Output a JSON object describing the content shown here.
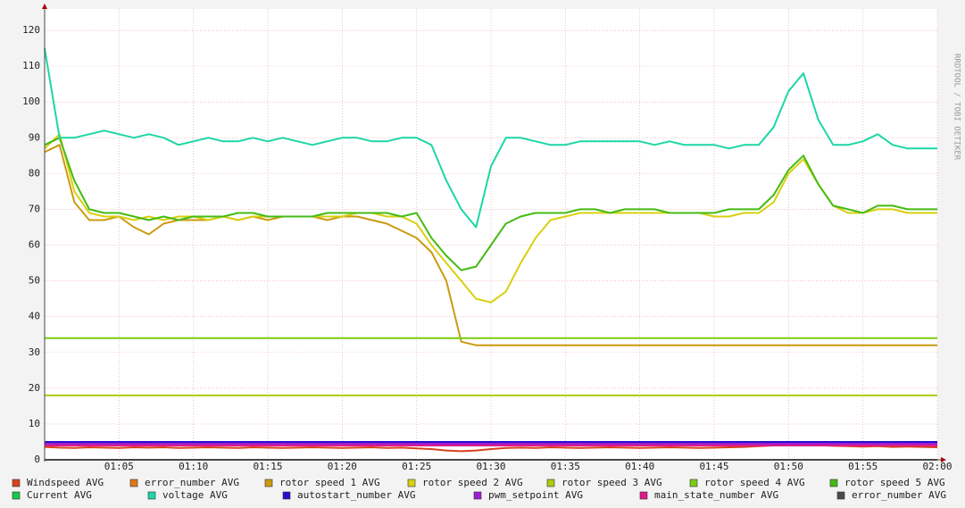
{
  "chart_data": {
    "type": "line",
    "watermark": "RRDTOOL / TOBI OETIKER",
    "x": [
      0,
      1,
      2,
      3,
      4,
      5,
      6,
      7,
      8,
      9,
      10,
      11,
      12,
      13,
      14,
      15,
      16,
      17,
      18,
      19,
      20,
      21,
      22,
      23,
      24,
      25,
      26,
      27,
      28,
      29,
      30,
      31,
      32,
      33,
      34,
      35,
      36,
      37,
      38,
      39,
      40,
      41,
      42,
      43,
      44,
      45,
      46,
      47,
      48,
      49,
      50,
      51,
      52,
      53,
      54,
      55,
      56,
      57,
      58,
      59,
      60
    ],
    "xlim": [
      0,
      60
    ],
    "xticks": [
      {
        "value": 5,
        "label": "01:05"
      },
      {
        "value": 10,
        "label": "01:10"
      },
      {
        "value": 15,
        "label": "01:15"
      },
      {
        "value": 20,
        "label": "01:20"
      },
      {
        "value": 25,
        "label": "01:25"
      },
      {
        "value": 30,
        "label": "01:30"
      },
      {
        "value": 35,
        "label": "01:35"
      },
      {
        "value": 40,
        "label": "01:40"
      },
      {
        "value": 45,
        "label": "01:45"
      },
      {
        "value": 50,
        "label": "01:50"
      },
      {
        "value": 55,
        "label": "01:55"
      },
      {
        "value": 60,
        "label": "02:00"
      }
    ],
    "ylim": [
      0,
      126
    ],
    "yticks": [
      0,
      10,
      20,
      30,
      40,
      50,
      60,
      70,
      80,
      90,
      100,
      110,
      120
    ],
    "grid": true,
    "series": [
      {
        "name": "Windspeed AVG",
        "color": "#d8421e",
        "values": [
          3.6,
          3.4,
          3.3,
          3.5,
          3.4,
          3.3,
          3.5,
          3.4,
          3.5,
          3.3,
          3.4,
          3.5,
          3.4,
          3.3,
          3.5,
          3.4,
          3.3,
          3.4,
          3.5,
          3.4,
          3.3,
          3.4,
          3.5,
          3.3,
          3.4,
          3.2,
          3.0,
          2.6,
          2.4,
          2.6,
          3.0,
          3.3,
          3.4,
          3.3,
          3.5,
          3.4,
          3.3,
          3.4,
          3.5,
          3.4,
          3.3,
          3.4,
          3.5,
          3.4,
          3.3,
          3.4,
          3.5,
          3.6,
          3.8,
          4.0,
          4.2,
          4.3,
          4.1,
          3.9,
          3.8,
          3.7,
          3.8,
          3.6,
          3.7,
          3.6,
          3.5
        ]
      },
      {
        "name": "error_number AVG",
        "color": "#de7a16",
        "values": [
          0,
          0,
          0,
          0,
          0,
          0,
          0,
          0,
          0,
          0,
          0,
          0,
          0,
          0,
          0,
          0,
          0,
          0,
          0,
          0,
          0,
          0,
          0,
          0,
          0,
          0,
          0,
          0,
          0,
          0,
          0,
          0,
          0,
          0,
          0,
          0,
          0,
          0,
          0,
          0,
          0,
          0,
          0,
          0,
          0,
          0,
          0,
          0,
          0,
          0,
          0,
          0,
          0,
          0,
          0,
          0,
          0,
          0,
          0,
          0,
          0
        ]
      },
      {
        "name": "rotor speed 1 AVG",
        "color": "#cc9a10",
        "values": [
          86,
          88,
          72,
          67,
          67,
          68,
          65,
          63,
          66,
          67,
          67,
          67,
          68,
          67,
          68,
          67,
          68,
          68,
          68,
          67,
          68,
          68,
          67,
          66,
          64,
          62,
          58,
          50,
          33,
          32,
          32,
          32,
          32,
          32,
          32,
          32,
          32,
          32,
          32,
          32,
          32,
          32,
          32,
          32,
          32,
          32,
          32,
          32,
          32,
          32,
          32,
          32,
          32,
          32,
          32,
          32,
          32,
          32,
          32,
          32,
          32
        ]
      },
      {
        "name": "rotor speed 2 AVG",
        "color": "#d8d010",
        "values": [
          87,
          91,
          75,
          69,
          68,
          68,
          67,
          68,
          67,
          68,
          68,
          67,
          68,
          67,
          68,
          68,
          68,
          68,
          68,
          68,
          68,
          69,
          69,
          68,
          68,
          66,
          60,
          55,
          50,
          45,
          44,
          47,
          55,
          62,
          67,
          68,
          69,
          69,
          69,
          69,
          69,
          69,
          69,
          69,
          69,
          68,
          68,
          69,
          69,
          72,
          80,
          84,
          77,
          71,
          69,
          69,
          70,
          70,
          69,
          69,
          69
        ]
      },
      {
        "name": "rotor speed 3 AVG",
        "color": "#aacc10",
        "values": [
          18,
          18,
          18,
          18,
          18,
          18,
          18,
          18,
          18,
          18,
          18,
          18,
          18,
          18,
          18,
          18,
          18,
          18,
          18,
          18,
          18,
          18,
          18,
          18,
          18,
          18,
          18,
          18,
          18,
          18,
          18,
          18,
          18,
          18,
          18,
          18,
          18,
          18,
          18,
          18,
          18,
          18,
          18,
          18,
          18,
          18,
          18,
          18,
          18,
          18,
          18,
          18,
          18,
          18,
          18,
          18,
          18,
          18,
          18,
          18,
          18
        ]
      },
      {
        "name": "rotor speed 4 AVG",
        "color": "#7acc10",
        "values": [
          34,
          34,
          34,
          34,
          34,
          34,
          34,
          34,
          34,
          34,
          34,
          34,
          34,
          34,
          34,
          34,
          34,
          34,
          34,
          34,
          34,
          34,
          34,
          34,
          34,
          34,
          34,
          34,
          34,
          34,
          34,
          34,
          34,
          34,
          34,
          34,
          34,
          34,
          34,
          34,
          34,
          34,
          34,
          34,
          34,
          34,
          34,
          34,
          34,
          34,
          34,
          34,
          34,
          34,
          34,
          34,
          34,
          34,
          34,
          34,
          34
        ]
      },
      {
        "name": "rotor speed 5 AVG",
        "color": "#44bb14",
        "values": [
          88,
          90,
          78,
          70,
          69,
          69,
          68,
          67,
          68,
          67,
          68,
          68,
          68,
          69,
          69,
          68,
          68,
          68,
          68,
          69,
          69,
          69,
          69,
          69,
          68,
          69,
          62,
          57,
          53,
          54,
          60,
          66,
          68,
          69,
          69,
          69,
          70,
          70,
          69,
          70,
          70,
          70,
          69,
          69,
          69,
          69,
          70,
          70,
          70,
          74,
          81,
          85,
          77,
          71,
          70,
          69,
          71,
          71,
          70,
          70,
          70
        ]
      },
      {
        "name": "Current AVG",
        "color": "#16c84a",
        "values": [
          0,
          0,
          0,
          0,
          0,
          0,
          0,
          0,
          0,
          0,
          0,
          0,
          0,
          0,
          0,
          0,
          0,
          0,
          0,
          0,
          0,
          0,
          0,
          0,
          0,
          0,
          0,
          0,
          0,
          0,
          0,
          0,
          0,
          0,
          0,
          0,
          0,
          0,
          0,
          0,
          0,
          0,
          0,
          0,
          0,
          0,
          0,
          0,
          0,
          0,
          0,
          0,
          0,
          0,
          0,
          0,
          0,
          0,
          0,
          0,
          0
        ]
      },
      {
        "name": "voltage AVG",
        "color": "#1cd6a6",
        "values": [
          115,
          90,
          90,
          91,
          92,
          91,
          90,
          91,
          90,
          88,
          89,
          90,
          89,
          89,
          90,
          89,
          90,
          89,
          88,
          89,
          90,
          90,
          89,
          89,
          90,
          90,
          88,
          78,
          70,
          65,
          82,
          90,
          90,
          89,
          88,
          88,
          89,
          89,
          89,
          89,
          89,
          88,
          89,
          88,
          88,
          88,
          87,
          88,
          88,
          93,
          103,
          108,
          95,
          88,
          88,
          89,
          91,
          88,
          87,
          87,
          87
        ]
      },
      {
        "name": "autostart_number AVG",
        "color": "#2a0ed0",
        "values": [
          5,
          5,
          5,
          5,
          5,
          5,
          5,
          5,
          5,
          5,
          5,
          5,
          5,
          5,
          5,
          5,
          5,
          5,
          5,
          5,
          5,
          5,
          5,
          5,
          5,
          5,
          5,
          5,
          5,
          5,
          5,
          5,
          5,
          5,
          5,
          5,
          5,
          5,
          5,
          5,
          5,
          5,
          5,
          5,
          5,
          5,
          5,
          5,
          5,
          5,
          5,
          5,
          5,
          5,
          5,
          5,
          5,
          5,
          5,
          5,
          5
        ]
      },
      {
        "name": "pwm_setpoint AVG",
        "color": "#9a1ed0",
        "values": [
          4.5,
          4.5,
          4.5,
          4.5,
          4.5,
          4.5,
          4.5,
          4.5,
          4.5,
          4.5,
          4.5,
          4.5,
          4.5,
          4.5,
          4.5,
          4.5,
          4.5,
          4.5,
          4.5,
          4.5,
          4.5,
          4.5,
          4.5,
          4.5,
          4.5,
          4.5,
          4.5,
          4.5,
          4.5,
          4.5,
          4.5,
          4.5,
          4.5,
          4.5,
          4.5,
          4.5,
          4.5,
          4.5,
          4.5,
          4.5,
          4.5,
          4.5,
          4.5,
          4.5,
          4.5,
          4.5,
          4.5,
          4.5,
          4.5,
          4.5,
          4.5,
          4.5,
          4.5,
          4.5,
          4.5,
          4.5,
          4.5,
          4.5,
          4.5,
          4.5,
          4.5
        ]
      },
      {
        "name": "main_state_number AVG",
        "color": "#de1a8c",
        "values": [
          4,
          4,
          4,
          4,
          4,
          4,
          4,
          4,
          4,
          4,
          4,
          4,
          4,
          4,
          4,
          4,
          4,
          4,
          4,
          4,
          4,
          4,
          4,
          4,
          4,
          4,
          4,
          4,
          4,
          4,
          4,
          4,
          4,
          4,
          4,
          4,
          4,
          4,
          4,
          4,
          4,
          4,
          4,
          4,
          4,
          4,
          4,
          4,
          4,
          4,
          4,
          4,
          4,
          4,
          4,
          4,
          4,
          4,
          4,
          4,
          4
        ]
      },
      {
        "name": "error_number AVG",
        "color": "#4a4a4a",
        "values": [
          0,
          0,
          0,
          0,
          0,
          0,
          0,
          0,
          0,
          0,
          0,
          0,
          0,
          0,
          0,
          0,
          0,
          0,
          0,
          0,
          0,
          0,
          0,
          0,
          0,
          0,
          0,
          0,
          0,
          0,
          0,
          0,
          0,
          0,
          0,
          0,
          0,
          0,
          0,
          0,
          0,
          0,
          0,
          0,
          0,
          0,
          0,
          0,
          0,
          0,
          0,
          0,
          0,
          0,
          0,
          0,
          0,
          0,
          0,
          0,
          0
        ]
      }
    ]
  }
}
